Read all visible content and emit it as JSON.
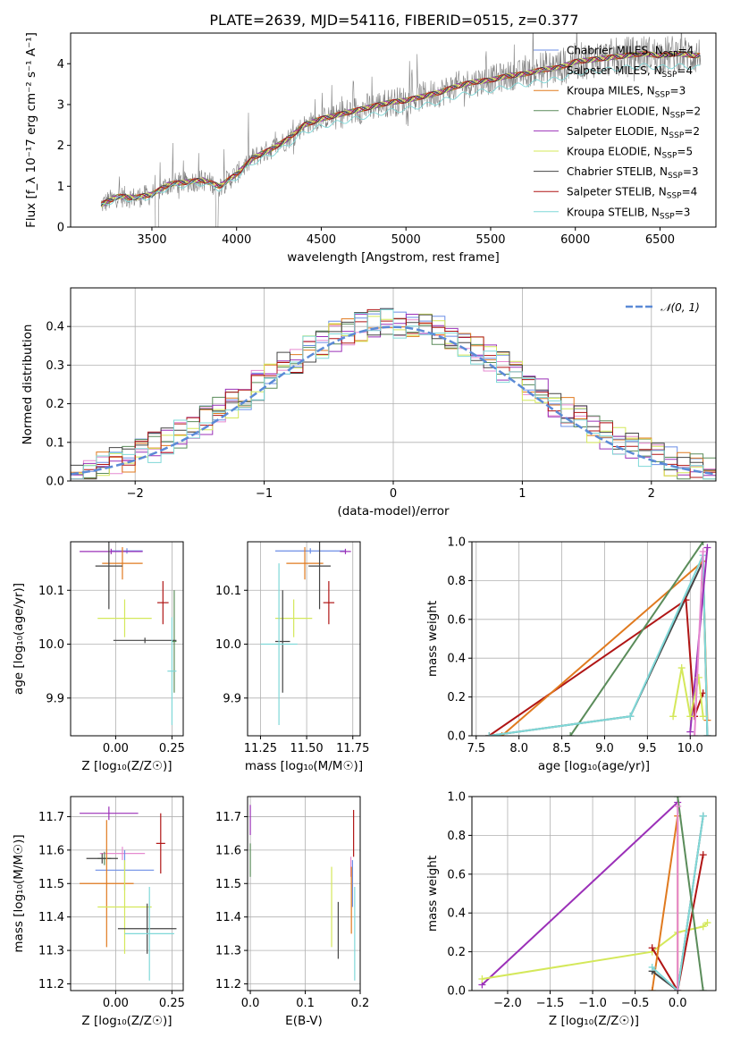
{
  "figure_title": "PLATE=2639, MJD=54116, FIBERID=0515, z=0.377",
  "colors": {
    "Chabrier MILES": "#6b8ee6",
    "Salpeter MILES": "#9a9a9a",
    "Kroupa MILES": "#e07a1f",
    "Chabrier ELODIE": "#5a8c5a",
    "Salpeter ELODIE": "#9b30b8",
    "Kroupa ELODIE": "#d4e85a",
    "Chabrier STELIB": "#444444",
    "Salpeter STELIB": "#b01515",
    "Kroupa STELIB": "#7fd8d8",
    "pink": "#e68ad0",
    "data_spectrum": "#808080",
    "gauss": "#5b8ad6"
  },
  "chart_data": [
    {
      "panel": "spectrum",
      "type": "line",
      "xlabel": "wavelength [Angstrom, rest frame]",
      "ylabel": "Flux [f_λ 10^-17 erg cm^-2 s^-1 A^-1]",
      "xlim": [
        3020,
        6830
      ],
      "ylim": [
        0,
        4.75
      ],
      "xticks": [
        3500,
        4000,
        4500,
        5000,
        5500,
        6000,
        6500
      ],
      "yticks": [
        0,
        1,
        2,
        3,
        4
      ],
      "grid": false,
      "legend_position": "right",
      "legend": [
        "Chabrier MILES, N_SSP=4",
        "Salpeter MILES, N_SSP=4",
        "Kroupa MILES, N_SSP=3",
        "Chabrier ELODIE, N_SSP=2",
        "Salpeter ELODIE, N_SSP=2",
        "Kroupa ELODIE, N_SSP=5",
        "Chabrier STELIB, N_SSP=3",
        "Salpeter STELIB, N_SSP=4",
        "Kroupa STELIB, N_SSP=3"
      ],
      "model_continuum": {
        "x": [
          3200,
          3300,
          3400,
          3500,
          3600,
          3700,
          3800,
          3900,
          4000,
          4100,
          4200,
          4300,
          4400,
          4500,
          4600,
          4700,
          4800,
          4900,
          5000,
          5100,
          5200,
          5300,
          5400,
          5500,
          5600,
          5700,
          5800,
          5900,
          6000,
          6100,
          6200,
          6300,
          6400,
          6500,
          6600,
          6700,
          6740
        ],
        "y": [
          0.55,
          0.75,
          0.72,
          0.8,
          1.05,
          1.1,
          1.15,
          1.0,
          1.3,
          1.7,
          1.9,
          2.15,
          2.5,
          2.65,
          2.75,
          2.85,
          2.95,
          3.05,
          3.1,
          3.2,
          3.3,
          3.45,
          3.55,
          3.6,
          3.7,
          3.75,
          3.85,
          3.9,
          4.05,
          4.1,
          4.15,
          4.2,
          4.25,
          4.2,
          4.25,
          4.2,
          4.2
        ]
      }
    },
    {
      "panel": "residuals",
      "type": "histogram",
      "xlabel": "(data-model)/error",
      "ylabel": "Normed distribution",
      "xlim": [
        -2.5,
        2.5
      ],
      "ylim": [
        0,
        0.5
      ],
      "xticks": [
        -2,
        -1,
        0,
        1,
        2
      ],
      "yticks": [
        0.0,
        0.1,
        0.2,
        0.3,
        0.4
      ],
      "grid": true,
      "legend": [
        "N(0,1)"
      ],
      "legend_position": "top-right",
      "gauss_label_prefix": "𝒩",
      "gauss_label_suffix": "(0, 1)",
      "gaussian": {
        "mu": 0,
        "sigma": 1
      }
    },
    {
      "panel": "age-vs-Z",
      "type": "errorbar",
      "xlabel": "Z [log10(Z/Z☉)]",
      "ylabel": "age [log10(age/yr)]",
      "xlim": [
        -0.2,
        0.3
      ],
      "ylim": [
        9.83,
        10.19
      ],
      "xticks": [
        0.0,
        0.25
      ],
      "yticks": [
        9.9,
        10.0,
        10.1
      ],
      "grid": true,
      "points": [
        {
          "model": "Chabrier MILES",
          "x": 0.05,
          "y": 10.173,
          "xerr": 0.07,
          "yerr": 0.005
        },
        {
          "model": "Salpeter ELODIE",
          "x": -0.02,
          "y": 10.172,
          "xerr": 0.14,
          "yerr": 0.005
        },
        {
          "model": "Kroupa MILES",
          "x": 0.03,
          "y": 10.15,
          "xerr": 0.09,
          "yerr": 0.03
        },
        {
          "model": "Chabrier STELIB",
          "x": -0.03,
          "y": 10.145,
          "xerr": 0.06,
          "yerr": 0.08
        },
        {
          "model": "Kroupa ELODIE",
          "x": 0.04,
          "y": 10.048,
          "xerr": 0.12,
          "yerr": 0.035
        },
        {
          "model": "Salpeter STELIB",
          "x": 0.21,
          "y": 10.077,
          "xerr": 0.025,
          "yerr": 0.04
        },
        {
          "model": "Chabrier ELODIE",
          "x": 0.26,
          "y": 10.005,
          "xerr": 0.01,
          "yerr": 0.095
        },
        {
          "model": "Chabrier STELIB",
          "x": 0.13,
          "y": 10.007,
          "xerr": 0.14,
          "yerr": 0.005
        },
        {
          "model": "Kroupa STELIB",
          "x": 0.25,
          "y": 9.95,
          "xerr": 0.02,
          "yerr": 0.1
        }
      ]
    },
    {
      "panel": "age-vs-mass",
      "type": "errorbar",
      "xlabel": "mass [log10(M/M☉)]",
      "ylabel": "",
      "xlim": [
        11.18,
        11.79
      ],
      "ylim": [
        9.83,
        10.19
      ],
      "xticks": [
        11.25,
        11.5,
        11.75
      ],
      "yticks": [
        9.9,
        10.0,
        10.1
      ],
      "grid": true,
      "points": [
        {
          "model": "Chabrier MILES",
          "x": 11.52,
          "y": 10.173,
          "xerr": 0.19,
          "yerr": 0.005
        },
        {
          "model": "Salpeter ELODIE",
          "x": 11.71,
          "y": 10.172,
          "xerr": 0.03,
          "yerr": 0.005
        },
        {
          "model": "Kroupa MILES",
          "x": 11.49,
          "y": 10.15,
          "xerr": 0.1,
          "yerr": 0.03
        },
        {
          "model": "Chabrier STELIB",
          "x": 11.57,
          "y": 10.145,
          "xerr": 0.06,
          "yerr": 0.08
        },
        {
          "model": "Kroupa ELODIE",
          "x": 11.43,
          "y": 10.048,
          "xerr": 0.1,
          "yerr": 0.035
        },
        {
          "model": "Salpeter STELIB",
          "x": 11.62,
          "y": 10.077,
          "xerr": 0.03,
          "yerr": 0.04
        },
        {
          "model": "Chabrier STELIB",
          "x": 11.37,
          "y": 10.005,
          "xerr": 0.04,
          "yerr": 0.095
        },
        {
          "model": "Kroupa STELIB",
          "x": 11.35,
          "y": 10.0,
          "xerr": 0.1,
          "yerr": 0.15
        }
      ]
    },
    {
      "panel": "massweight-vs-age",
      "type": "line",
      "xlabel": "age [log10(age/yr)]",
      "ylabel": "mass weight",
      "xlim": [
        7.45,
        10.3
      ],
      "ylim": [
        0,
        1
      ],
      "xticks": [
        7.5,
        8.0,
        8.5,
        9.0,
        9.5,
        10.0
      ],
      "yticks": [
        0.0,
        0.2,
        0.4,
        0.6,
        0.8,
        1.0
      ],
      "grid": true,
      "series": [
        {
          "model": "Chabrier STELIB",
          "x": [
            7.65,
            9.3,
            10.15,
            10.2
          ],
          "y": [
            0.0,
            0.1,
            0.9,
            0.0
          ]
        },
        {
          "model": "Salpeter STELIB",
          "x": [
            7.65,
            9.95,
            10.05,
            10.15
          ],
          "y": [
            0.0,
            0.7,
            0.1,
            0.22
          ]
        },
        {
          "model": "Kroupa MILES",
          "x": [
            7.8,
            10.15,
            10.2
          ],
          "y": [
            0.0,
            0.9,
            0.08
          ]
        },
        {
          "model": "Chabrier ELODIE",
          "x": [
            8.6,
            10.15
          ],
          "y": [
            0.0,
            1.0
          ]
        },
        {
          "model": "Kroupa STELIB",
          "x": [
            7.65,
            9.3,
            10.15,
            10.2
          ],
          "y": [
            0.0,
            0.1,
            0.93,
            0.0
          ]
        },
        {
          "model": "Salpeter ELODIE",
          "x": [
            10.0,
            10.2
          ],
          "y": [
            0.02,
            0.97
          ]
        },
        {
          "model": "Kroupa ELODIE",
          "x": [
            9.8,
            9.9,
            10.0,
            10.1,
            10.15
          ],
          "y": [
            0.1,
            0.35,
            0.1,
            0.3,
            0.1
          ]
        },
        {
          "model": "pink",
          "x": [
            10.05,
            10.15
          ],
          "y": [
            0.0,
            0.95
          ]
        }
      ]
    },
    {
      "panel": "mass-vs-Z",
      "type": "errorbar",
      "xlabel": "Z [log10(Z/Z☉)]",
      "ylabel": "mass [log10(M/M☉)]",
      "xlim": [
        -0.2,
        0.3
      ],
      "ylim": [
        11.18,
        11.76
      ],
      "xticks": [
        0.0,
        0.25
      ],
      "yticks": [
        11.2,
        11.3,
        11.4,
        11.5,
        11.6,
        11.7
      ],
      "grid": true,
      "points": [
        {
          "model": "Salpeter ELODIE",
          "x": -0.03,
          "y": 11.71,
          "xerr": 0.13,
          "yerr": 0.02
        },
        {
          "model": "Salpeter STELIB",
          "x": 0.2,
          "y": 11.62,
          "xerr": 0.02,
          "yerr": 0.09
        },
        {
          "model": "pink",
          "x": 0.03,
          "y": 11.59,
          "xerr": 0.1,
          "yerr": 0.02
        },
        {
          "model": "Chabrier ELODIE",
          "x": -0.05,
          "y": 11.575,
          "xerr": 0.03,
          "yerr": 0.02
        },
        {
          "model": "Chabrier STELIB",
          "x": -0.06,
          "y": 11.575,
          "xerr": 0.07,
          "yerr": 0.015
        },
        {
          "model": "Chabrier MILES",
          "x": 0.04,
          "y": 11.54,
          "xerr": 0.13,
          "yerr": 0.06
        },
        {
          "model": "Kroupa MILES",
          "x": -0.04,
          "y": 11.5,
          "xerr": 0.12,
          "yerr": 0.19
        },
        {
          "model": "Kroupa ELODIE",
          "x": 0.04,
          "y": 11.43,
          "xerr": 0.12,
          "yerr": 0.14
        },
        {
          "model": "Chabrier STELIB",
          "x": 0.14,
          "y": 11.365,
          "xerr": 0.13,
          "yerr": 0.075
        },
        {
          "model": "Kroupa STELIB",
          "x": 0.15,
          "y": 11.35,
          "xerr": 0.11,
          "yerr": 0.14
        }
      ]
    },
    {
      "panel": "mass-vs-EBV",
      "type": "errorbar",
      "xlabel": "E(B-V)",
      "ylabel": "",
      "xlim": [
        -0.005,
        0.2
      ],
      "ylim": [
        11.18,
        11.76
      ],
      "xticks": [
        0.0,
        0.1,
        0.2
      ],
      "yticks": [
        11.2,
        11.3,
        11.4,
        11.5,
        11.6,
        11.7
      ],
      "grid": true,
      "points": [
        {
          "model": "Salpeter ELODIE",
          "x": 0.0,
          "y": 11.69,
          "yerr": 0.045
        },
        {
          "model": "Chabrier ELODIE",
          "x": 0.0,
          "y": 11.57,
          "yerr": 0.05
        },
        {
          "model": "Salpeter STELIB",
          "x": 0.188,
          "y": 11.65,
          "yerr": 0.07
        },
        {
          "model": "pink",
          "x": 0.183,
          "y": 11.55,
          "yerr": 0.03
        },
        {
          "model": "Chabrier MILES",
          "x": 0.186,
          "y": 11.5,
          "yerr": 0.07
        },
        {
          "model": "Kroupa MILES",
          "x": 0.184,
          "y": 11.45,
          "yerr": 0.1
        },
        {
          "model": "Kroupa ELODIE",
          "x": 0.148,
          "y": 11.43,
          "yerr": 0.12
        },
        {
          "model": "Chabrier STELIB",
          "x": 0.16,
          "y": 11.36,
          "yerr": 0.085
        },
        {
          "model": "Kroupa STELIB",
          "x": 0.19,
          "y": 11.35,
          "yerr": 0.14
        }
      ]
    },
    {
      "panel": "massweight-vs-Z",
      "type": "line",
      "xlabel": "Z [log10(Z/Z☉)]",
      "ylabel": "mass weight",
      "xlim": [
        -2.42,
        0.45
      ],
      "ylim": [
        0,
        1
      ],
      "xticks": [
        -2.0,
        -1.5,
        -1.0,
        -0.5,
        0.0
      ],
      "yticks": [
        0.0,
        0.2,
        0.4,
        0.6,
        0.8,
        1.0
      ],
      "grid": true,
      "series": [
        {
          "model": "Salpeter ELODIE",
          "x": [
            -2.3,
            0.0
          ],
          "y": [
            0.03,
            0.97
          ]
        },
        {
          "model": "Kroupa ELODIE",
          "x": [
            -2.3,
            -0.3,
            0.0,
            0.3,
            0.35
          ],
          "y": [
            0.06,
            0.2,
            0.3,
            0.33,
            0.35
          ]
        },
        {
          "model": "Salpeter STELIB",
          "x": [
            -0.3,
            0.0,
            0.3
          ],
          "y": [
            0.22,
            0.0,
            0.7
          ]
        },
        {
          "model": "Kroupa MILES",
          "x": [
            -0.3,
            0.0,
            0.0
          ],
          "y": [
            0.0,
            0.9,
            0.0
          ]
        },
        {
          "model": "Chabrier STELIB",
          "x": [
            -0.3,
            0.0,
            0.3
          ],
          "y": [
            0.1,
            0.0,
            0.9
          ]
        },
        {
          "model": "Kroupa STELIB",
          "x": [
            -0.3,
            0.0,
            0.3
          ],
          "y": [
            0.12,
            0.0,
            0.9
          ]
        },
        {
          "model": "Chabrier ELODIE",
          "x": [
            0.0,
            0.3
          ],
          "y": [
            1.0,
            0.0
          ]
        },
        {
          "model": "pink",
          "x": [
            0.0,
            0.0
          ],
          "y": [
            0.95,
            0.0
          ]
        }
      ]
    }
  ]
}
